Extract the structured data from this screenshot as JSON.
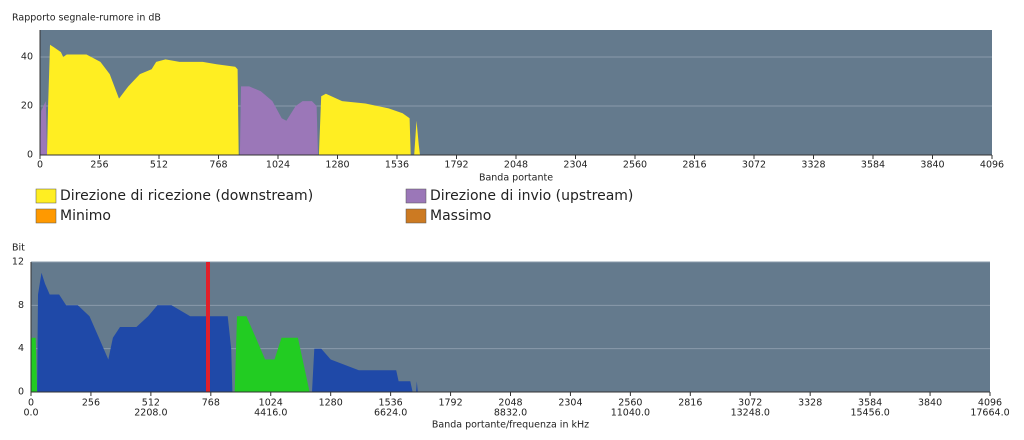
{
  "chart_data": [
    {
      "type": "area",
      "ylabel": "Rapporto segnale-rumore in dB",
      "xlabel": "Banda portante",
      "xlim": [
        0,
        4096
      ],
      "xticks": [
        0,
        256,
        512,
        768,
        1024,
        1280,
        1536,
        1792,
        2048,
        2304,
        2560,
        2816,
        3072,
        3328,
        3584,
        3840,
        4096
      ],
      "ylim": [
        0,
        51
      ],
      "yticks": [
        0,
        20,
        40
      ],
      "grid": true,
      "background": "#647a8d",
      "series": [
        {
          "name": "Direzione di ricezione (downstream)",
          "color": "#ffee22",
          "x": [
            30,
            35,
            43,
            60,
            90,
            100,
            115,
            200,
            260,
            300,
            340,
            380,
            430,
            480,
            500,
            540,
            600,
            700,
            760,
            840,
            850,
            855,
            null,
            1200,
            1210,
            1230,
            1300,
            1400,
            1500,
            1560,
            1590,
            1595,
            null,
            1610,
            1620,
            1630,
            1635
          ],
          "values": [
            0,
            20,
            45,
            44,
            42,
            40,
            41,
            41,
            38,
            33,
            23,
            28,
            33,
            35,
            38,
            39,
            38,
            38,
            37,
            36,
            35,
            0,
            null,
            0,
            24,
            25,
            22,
            21,
            19,
            17,
            15,
            0,
            null,
            0,
            14,
            4,
            0
          ]
        },
        {
          "name": "Direzione di invio (upstream)",
          "color": "#9b77b8",
          "x": [
            0,
            5,
            25,
            30,
            null,
            860,
            865,
            900,
            950,
            1000,
            1040,
            1060,
            1100,
            1130,
            1170,
            1190,
            1196
          ],
          "values": [
            0,
            18,
            22,
            0,
            null,
            0,
            28,
            28,
            26,
            22,
            15,
            14,
            20,
            22,
            22,
            20,
            0
          ]
        },
        {
          "name": "Minimo",
          "color": "#ff9900",
          "x": [],
          "values": []
        },
        {
          "name": "Massimo",
          "color": "#cc7a22",
          "x": [],
          "values": []
        }
      ]
    },
    {
      "type": "area",
      "ylabel": "Bit",
      "xlabel": "Banda portante/frequenza in kHz",
      "xlim": [
        0,
        4096
      ],
      "xticks": [
        0,
        256,
        512,
        768,
        1024,
        1280,
        1536,
        1792,
        2048,
        2304,
        2560,
        2816,
        3072,
        3328,
        3584,
        3840,
        4096
      ],
      "x2lim": [
        0,
        17664
      ],
      "x2ticks": [
        {
          "value": 0,
          "label": "0.0"
        },
        {
          "value": 2208,
          "label": "2208.0"
        },
        {
          "value": 4416,
          "label": "4416.0"
        },
        {
          "value": 6624,
          "label": "6624.0"
        },
        {
          "value": 8832,
          "label": "8832.0"
        },
        {
          "value": 11040,
          "label": "11040.0"
        },
        {
          "value": 13248,
          "label": "13248.0"
        },
        {
          "value": 15456,
          "label": "15456.0"
        },
        {
          "value": 17664,
          "label": "17664.0"
        }
      ],
      "ylim": [
        0,
        12
      ],
      "yticks": [
        0,
        4,
        8,
        12
      ],
      "grid": true,
      "background": "#647a8d",
      "marker_x": 756,
      "marker_color": "#e0202a",
      "series": [
        {
          "color": "#1f49a8",
          "x": [
            26,
            30,
            45,
            60,
            80,
            120,
            150,
            200,
            250,
            290,
            330,
            350,
            380,
            450,
            500,
            540,
            600,
            680,
            760,
            840,
            855,
            860,
            null,
            1200,
            1210,
            1240,
            1280,
            1400,
            1560,
            1570,
            1620,
            1630,
            null,
            1645,
            1648,
            1652
          ],
          "values": [
            0,
            9,
            11,
            10,
            9,
            9,
            8,
            8,
            7,
            5,
            3,
            5,
            6,
            6,
            7,
            8,
            8,
            7,
            7,
            7,
            4,
            0,
            null,
            0,
            4,
            4,
            3,
            2,
            2,
            1,
            1,
            0,
            null,
            0,
            1,
            0
          ]
        },
        {
          "color": "#22cc22",
          "x": [
            0,
            2,
            20,
            26,
            null,
            870,
            880,
            920,
            960,
            1000,
            1040,
            1070,
            1140,
            1160,
            1190
          ],
          "values": [
            0,
            5,
            5,
            0,
            null,
            0,
            7,
            7,
            5,
            3,
            3,
            5,
            5,
            3,
            0
          ]
        }
      ]
    }
  ]
}
